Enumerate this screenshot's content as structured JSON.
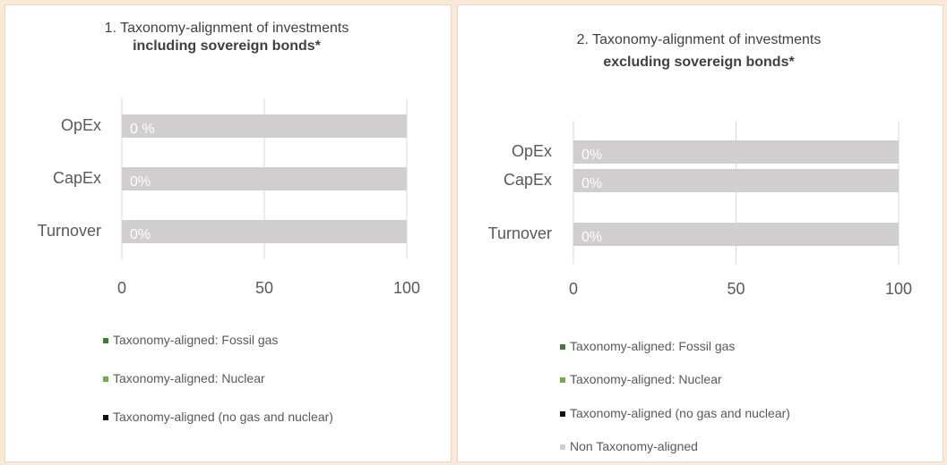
{
  "chart_data": [
    {
      "type": "bar",
      "orientation": "horizontal",
      "stacked": true,
      "title": "1. Taxonomy-alignment of investments",
      "subtitle": "including sovereign bonds*",
      "categories": [
        "OpEx",
        "CapEx",
        "Turnover"
      ],
      "series": [
        {
          "name": "Taxonomy-aligned: Fossil gas",
          "color": "#3b7d3b",
          "values": [
            0,
            0,
            0
          ]
        },
        {
          "name": "Taxonomy-aligned: Nuclear",
          "color": "#70ad47",
          "values": [
            0,
            0,
            0
          ]
        },
        {
          "name": "Taxonomy-aligned (no gas and nuclear)",
          "color": "#111111",
          "values": [
            0,
            0,
            0
          ],
          "value_labels": [
            "0 %",
            "0%",
            "0%"
          ]
        },
        {
          "color": "#d0cece",
          "values": [
            100,
            100,
            100
          ]
        }
      ],
      "xlim": [
        0,
        100
      ],
      "xticks": [
        0,
        50,
        100
      ],
      "grid": true,
      "legend": "bottom"
    },
    {
      "type": "bar",
      "orientation": "horizontal",
      "stacked": true,
      "title": "2.  Taxonomy-alignment of investments",
      "subtitle": "excluding sovereign bonds*",
      "categories": [
        "OpEx",
        "CapEx",
        "Turnover"
      ],
      "series": [
        {
          "name": "Taxonomy-aligned: Fossil gas",
          "color": "#3b7d3b",
          "values": [
            0,
            0,
            0
          ]
        },
        {
          "name": "Taxonomy-aligned: Nuclear",
          "color": "#70ad47",
          "values": [
            0,
            0,
            0
          ]
        },
        {
          "name": "Taxonomy-aligned (no gas and nuclear)",
          "color": "#111111",
          "values": [
            0,
            0,
            0
          ],
          "value_labels": [
            "0%",
            "0%",
            "0%"
          ]
        },
        {
          "name": "Non Taxonomy-aligned",
          "color": "#d0cece",
          "values": [
            100,
            100,
            100
          ]
        }
      ],
      "xlim": [
        0,
        100
      ],
      "xticks": [
        0,
        50,
        100
      ],
      "grid": true,
      "legend": "bottom"
    }
  ]
}
